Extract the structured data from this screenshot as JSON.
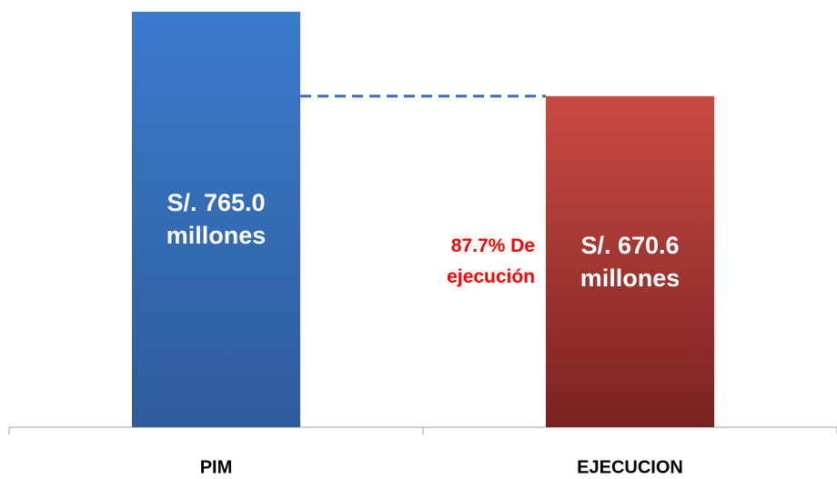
{
  "chart_data": {
    "type": "bar",
    "categories": [
      "PIM",
      "EJECUCION"
    ],
    "values": [
      765.0,
      670.6
    ],
    "value_labels": [
      "S/. 765.0 millones",
      "S/. 670.6 millones"
    ],
    "colors": [
      "#3b7bcc",
      "#c94a42"
    ],
    "annotation": "87.7% De ejecución",
    "ylim": [
      300,
      770
    ]
  }
}
